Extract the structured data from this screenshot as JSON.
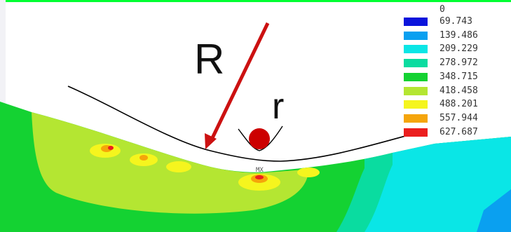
{
  "diagram": {
    "big_radius_label": "R",
    "small_radius_label": "r",
    "max_marker": "MX"
  },
  "legend": {
    "zero_label": "0",
    "bands": [
      {
        "label": "69.743",
        "color": "#0a14dc"
      },
      {
        "label": "139.486",
        "color": "#0aa0f0"
      },
      {
        "label": "209.229",
        "color": "#0ae6e6"
      },
      {
        "label": "278.972",
        "color": "#0adca0"
      },
      {
        "label": "348.715",
        "color": "#14d232"
      },
      {
        "label": "418.458",
        "color": "#b4e632"
      },
      {
        "label": "488.201",
        "color": "#f5f51e"
      },
      {
        "label": "557.944",
        "color": "#f5a50a"
      },
      {
        "label": "627.687",
        "color": "#eb1e1e"
      }
    ]
  },
  "colors": {
    "top_bar": "#00ff33",
    "arrow": "#cc1111",
    "ball": "#cc0000",
    "curve": "#000000"
  }
}
